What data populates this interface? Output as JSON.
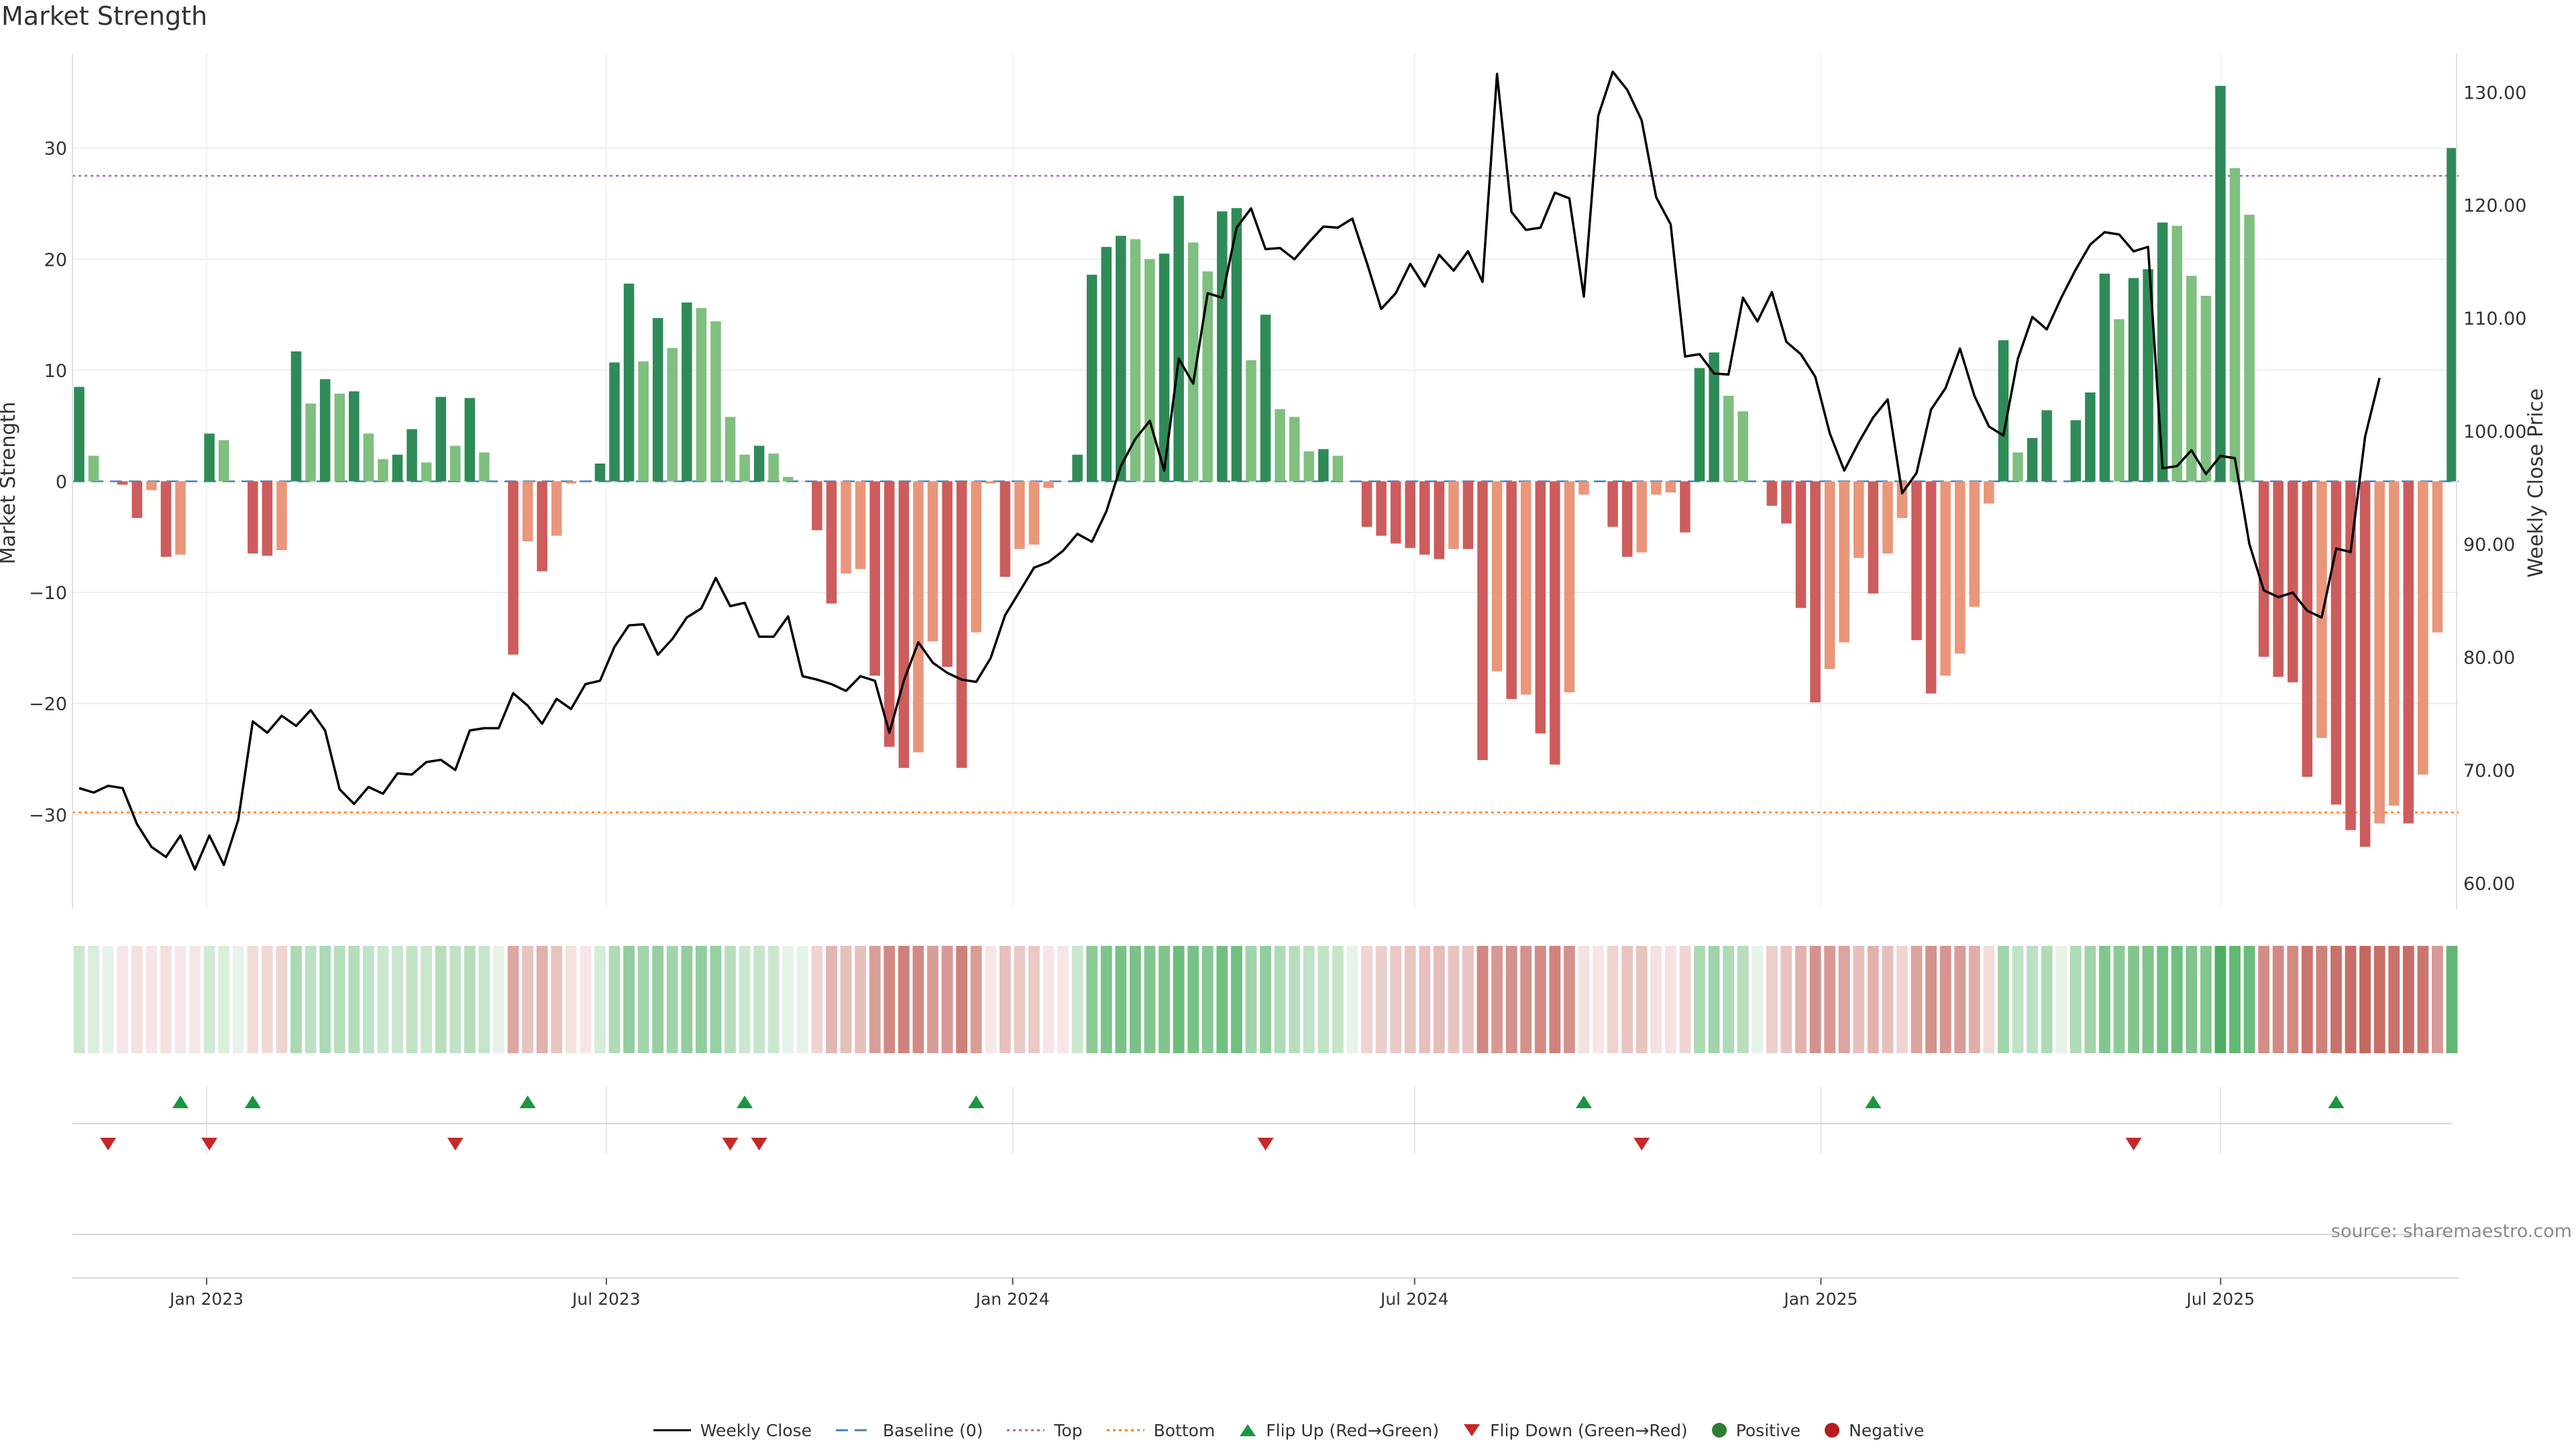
{
  "chart_data": {
    "type": "bar",
    "title": "Market Strength",
    "ylabel": "Market Strength",
    "y2label": "Weekly Close Price",
    "ylim": [
      -38.5,
      38.5
    ],
    "y2lim": [
      57.7,
      133.4
    ],
    "yticks": [
      30,
      20,
      10,
      0,
      -10,
      -20,
      -30
    ],
    "ytick_labels": [
      "30",
      "20",
      "10",
      "0",
      "−10",
      "−20",
      "−30"
    ],
    "y2ticks": [
      130,
      120,
      110,
      100,
      90,
      80,
      70,
      60
    ],
    "y2tick_labels": [
      "130.00",
      "120.00",
      "110.00",
      "100.00",
      "90.00",
      "80.00",
      "70.00",
      "60.00"
    ],
    "x_start": "2022-11-01",
    "x_end": "2025-10-17",
    "xticks": [
      "2023-01-01",
      "2023-07-01",
      "2024-01-01",
      "2024-07-01",
      "2025-01-01",
      "2025-07-01"
    ],
    "xtick_labels": [
      "Jan 2023",
      "Jul 2023",
      "Jan 2024",
      "Jul 2024",
      "Jan 2025",
      "Jul 2025"
    ],
    "top_threshold": 27.5,
    "bottom_threshold": -29.8,
    "baseline": 0,
    "grid": true,
    "legend_position": "bottom-center",
    "colors": {
      "pos_strong": "#2e8b57",
      "pos_weak": "#7fbf7f",
      "neg_strong": "#cd5c5c",
      "neg_weak": "#e9967a",
      "line": "#000000",
      "baseline": "#4a7fb0",
      "top": "#9467bd",
      "bottom": "#ff7f0e",
      "flip_up": "#1a9641",
      "flip_down": "#c62828",
      "positive_dot": "#2e7d32",
      "negative_dot": "#b71c1c"
    },
    "strength": [
      8.5,
      2.3,
      0,
      -0.3,
      -3.3,
      -0.8,
      -6.8,
      -6.6,
      0,
      4.3,
      3.7,
      0,
      -6.5,
      -6.7,
      -6.2,
      11.7,
      7,
      9.2,
      7.9,
      8.1,
      4.3,
      2,
      2.4,
      4.7,
      1.7,
      7.6,
      3.2,
      7.5,
      2.6,
      0,
      -15.6,
      -5.4,
      -8.1,
      -4.9,
      -0.2,
      0,
      1.6,
      10.7,
      17.8,
      10.8,
      14.7,
      12,
      16.1,
      15.6,
      14.4,
      5.8,
      2.4,
      3.2,
      2.5,
      0.4,
      0,
      -4.4,
      -11,
      -8.3,
      -7.9,
      -17.5,
      -23.9,
      -25.8,
      -24.4,
      -14.4,
      -16.7,
      -25.8,
      -13.6,
      -0.2,
      -8.6,
      -6.1,
      -5.7,
      -0.6,
      0,
      2.4,
      18.6,
      21.1,
      22.1,
      21.8,
      20,
      20.5,
      25.7,
      21.5,
      18.9,
      24.3,
      24.6,
      10.9,
      15,
      6.5,
      5.8,
      2.7,
      2.9,
      2.3,
      0,
      -4.1,
      -4.9,
      -5.6,
      -6,
      -6.6,
      -7,
      -6.1,
      -6.1,
      -25.1,
      -17.1,
      -19.6,
      -19.2,
      -22.7,
      -25.5,
      -19,
      -1.2,
      0,
      -4.1,
      -6.8,
      -6.4,
      -1.2,
      -1,
      -4.6,
      10.2,
      11.6,
      7.7,
      6.3,
      0,
      -2.2,
      -3.8,
      -11.4,
      -19.9,
      -16.9,
      -14.5,
      -6.9,
      -10.1,
      -6.5,
      -3.3,
      -14.3,
      -19.1,
      -17.5,
      -15.5,
      -11.3,
      -2,
      12.7,
      2.6,
      3.9,
      6.4,
      0,
      5.5,
      8,
      18.7,
      14.6,
      18.3,
      19.1,
      23.3,
      23,
      18.5,
      16.7,
      35.6,
      28.2,
      24,
      -15.8,
      -17.6,
      -18.1,
      -26.6,
      -23.1,
      -29.1,
      -31.4,
      -32.9,
      -30.8,
      -29.2,
      -30.8,
      -26.4,
      -13.6,
      30
    ],
    "close": [
      68.4,
      68,
      68.6,
      68.4,
      65.2,
      63.2,
      62.3,
      64.2,
      61.2,
      64.2,
      61.6,
      65.6,
      74.3,
      73.3,
      74.8,
      73.9,
      75.3,
      73.5,
      68.3,
      67,
      68.5,
      67.9,
      69.7,
      69.6,
      70.7,
      70.9,
      70,
      73.5,
      73.7,
      73.7,
      76.8,
      75.7,
      74.1,
      76.3,
      75.4,
      77.6,
      77.9,
      80.9,
      82.8,
      82.9,
      80.2,
      81.6,
      83.5,
      84.3,
      87,
      84.5,
      84.8,
      81.8,
      81.8,
      83.6,
      78.3,
      78,
      77.6,
      77,
      78.3,
      77.9,
      73.3,
      77.9,
      81.3,
      79.5,
      78.6,
      78,
      77.8,
      79.9,
      83.7,
      85.8,
      87.9,
      88.4,
      89.4,
      90.9,
      90.2,
      92.9,
      96.9,
      99.3,
      100.9,
      96.5,
      106.4,
      104.2,
      112.2,
      111.8,
      118,
      119.7,
      116.1,
      116.2,
      115.2,
      116.7,
      118.1,
      118,
      118.8,
      114.9,
      110.8,
      112.2,
      114.8,
      112.8,
      115.6,
      114.2,
      115.9,
      113.2,
      131.6,
      119.4,
      117.8,
      118,
      121.1,
      120.6,
      111.9,
      127.9,
      131.8,
      130.2,
      127.5,
      120.7,
      118.3,
      106.6,
      106.8,
      105.1,
      105,
      111.8,
      109.7,
      112.3,
      107.9,
      106.8,
      104.8,
      99.8,
      96.5,
      99,
      101.2,
      102.8,
      94.5,
      96.3,
      101.9,
      103.8,
      107.3,
      103.1,
      100.4,
      99.6,
      106.4,
      110.1,
      109,
      111.8,
      114.3,
      116.5,
      117.6,
      117.4,
      115.9,
      116.3,
      96.7,
      96.9,
      98.3,
      96.2,
      97.8,
      97.6,
      90,
      85.9,
      85.3,
      85.7,
      84.1,
      83.5,
      89.6,
      89.3,
      99.5,
      104.7
    ],
    "heat": [
      0.25,
      0.18,
      0.1,
      0.12,
      0.15,
      0.12,
      0.16,
      0.12,
      0.1,
      0.22,
      0.18,
      0.12,
      0.18,
      0.2,
      0.22,
      0.4,
      0.32,
      0.4,
      0.35,
      0.36,
      0.3,
      0.25,
      0.26,
      0.3,
      0.25,
      0.35,
      0.3,
      0.35,
      0.28,
      0.12,
      0.45,
      0.3,
      0.4,
      0.3,
      0.15,
      0.1,
      0.2,
      0.38,
      0.52,
      0.45,
      0.5,
      0.45,
      0.52,
      0.52,
      0.5,
      0.35,
      0.25,
      0.28,
      0.25,
      0.12,
      0.1,
      0.22,
      0.38,
      0.33,
      0.32,
      0.5,
      0.6,
      0.65,
      0.6,
      0.5,
      0.52,
      0.65,
      0.5,
      0.12,
      0.32,
      0.28,
      0.28,
      0.12,
      0.1,
      0.25,
      0.55,
      0.62,
      0.64,
      0.64,
      0.6,
      0.62,
      0.7,
      0.64,
      0.58,
      0.68,
      0.68,
      0.45,
      0.52,
      0.38,
      0.35,
      0.3,
      0.3,
      0.28,
      0.1,
      0.22,
      0.25,
      0.28,
      0.3,
      0.32,
      0.34,
      0.3,
      0.3,
      0.62,
      0.52,
      0.57,
      0.56,
      0.6,
      0.64,
      0.56,
      0.15,
      0.1,
      0.22,
      0.3,
      0.3,
      0.15,
      0.14,
      0.22,
      0.4,
      0.45,
      0.38,
      0.35,
      0.1,
      0.25,
      0.3,
      0.4,
      0.56,
      0.52,
      0.47,
      0.32,
      0.4,
      0.32,
      0.22,
      0.47,
      0.56,
      0.54,
      0.5,
      0.42,
      0.18,
      0.45,
      0.3,
      0.32,
      0.38,
      0.1,
      0.38,
      0.45,
      0.6,
      0.55,
      0.6,
      0.62,
      0.68,
      0.68,
      0.62,
      0.6,
      0.85,
      0.75,
      0.7,
      0.58,
      0.6,
      0.6,
      0.7,
      0.65,
      0.72,
      0.75,
      0.78,
      0.75,
      0.72,
      0.75,
      0.7,
      0.52,
      0.75
    ],
    "flip_up_weeks": [
      7,
      12,
      31,
      46,
      62,
      104,
      124,
      156
    ],
    "flip_down_weeks": [
      2,
      9,
      26,
      45,
      47,
      82,
      108,
      142
    ]
  },
  "legend": {
    "weekly_close": "Weekly Close",
    "baseline": "Baseline (0)",
    "top": "Top",
    "bottom": "Bottom",
    "flip_up": "Flip Up (Red→Green)",
    "flip_down": "Flip Down (Green→Red)",
    "positive": "Positive",
    "negative": "Negative"
  },
  "source": "source: sharemaestro.com"
}
